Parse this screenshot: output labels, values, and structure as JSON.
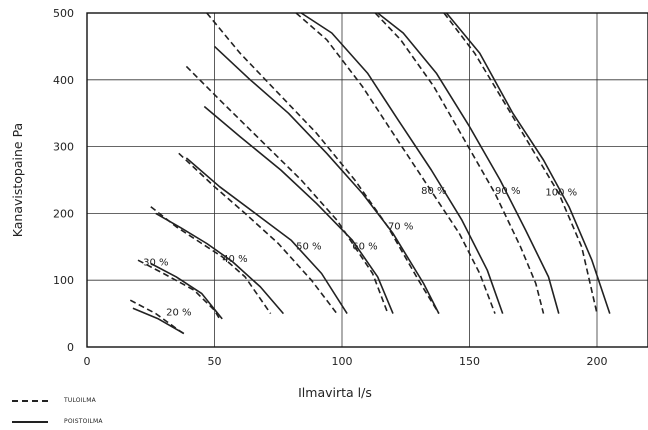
{
  "chart_data": {
    "type": "line",
    "xlabel": "Ilmavirta l/s",
    "ylabel": "Kanavistopaine Pa",
    "xlim": [
      0,
      220
    ],
    "ylim": [
      0,
      500
    ],
    "xticks": [
      0,
      50,
      100,
      150,
      200
    ],
    "yticks": [
      0,
      100,
      200,
      300,
      400,
      500
    ],
    "grid": true,
    "legend": [
      {
        "label": "TULOILMA",
        "style": "dashed"
      },
      {
        "label": "POISTOILMA",
        "style": "solid"
      }
    ],
    "series": [
      {
        "curve": "20 %",
        "style": "dashed",
        "points": [
          [
            17,
            70
          ],
          [
            27,
            50
          ],
          [
            36,
            25
          ],
          [
            38,
            20
          ]
        ]
      },
      {
        "curve": "20 %",
        "style": "solid",
        "points": [
          [
            18,
            58
          ],
          [
            28,
            42
          ],
          [
            38,
            20
          ]
        ]
      },
      {
        "curve": "30 %",
        "style": "dashed",
        "points": [
          [
            20,
            130
          ],
          [
            30,
            110
          ],
          [
            42,
            85
          ],
          [
            50,
            55
          ],
          [
            52,
            42
          ]
        ]
      },
      {
        "curve": "30 %",
        "style": "solid",
        "points": [
          [
            25,
            125
          ],
          [
            35,
            105
          ],
          [
            45,
            80
          ],
          [
            53,
            42
          ]
        ]
      },
      {
        "curve": "40 %",
        "style": "dashed",
        "points": [
          [
            25,
            210
          ],
          [
            35,
            180
          ],
          [
            45,
            155
          ],
          [
            53,
            135
          ],
          [
            62,
            105
          ],
          [
            72,
            50
          ]
        ]
      },
      {
        "curve": "40 %",
        "style": "solid",
        "points": [
          [
            27,
            200
          ],
          [
            37,
            178
          ],
          [
            47,
            155
          ],
          [
            57,
            128
          ],
          [
            68,
            90
          ],
          [
            77,
            50
          ]
        ]
      },
      {
        "curve": "50 %",
        "style": "dashed",
        "points": [
          [
            36,
            290
          ],
          [
            50,
            240
          ],
          [
            62,
            200
          ],
          [
            75,
            155
          ],
          [
            88,
            100
          ],
          [
            98,
            50
          ]
        ]
      },
      {
        "curve": "50 %",
        "style": "solid",
        "points": [
          [
            39,
            283
          ],
          [
            52,
            240
          ],
          [
            66,
            200
          ],
          [
            80,
            160
          ],
          [
            92,
            110
          ],
          [
            102,
            50
          ]
        ]
      },
      {
        "curve": "60 %",
        "style": "dashed",
        "points": [
          [
            39,
            420
          ],
          [
            52,
            370
          ],
          [
            68,
            310
          ],
          [
            84,
            250
          ],
          [
            98,
            190
          ],
          [
            112,
            110
          ],
          [
            118,
            50
          ]
        ]
      },
      {
        "curve": "60 %",
        "style": "solid",
        "points": [
          [
            46,
            360
          ],
          [
            60,
            315
          ],
          [
            76,
            265
          ],
          [
            90,
            215
          ],
          [
            104,
            160
          ],
          [
            114,
            105
          ],
          [
            120,
            50
          ]
        ]
      },
      {
        "curve": "70 %",
        "style": "dashed",
        "points": [
          [
            47,
            500
          ],
          [
            60,
            440
          ],
          [
            75,
            380
          ],
          [
            90,
            320
          ],
          [
            105,
            250
          ],
          [
            118,
            180
          ],
          [
            130,
            100
          ],
          [
            138,
            50
          ]
        ]
      },
      {
        "curve": "70 %",
        "style": "solid",
        "points": [
          [
            50,
            450
          ],
          [
            64,
            400
          ],
          [
            79,
            350
          ],
          [
            94,
            290
          ],
          [
            108,
            230
          ],
          [
            120,
            170
          ],
          [
            132,
            95
          ],
          [
            138,
            50
          ]
        ]
      },
      {
        "curve": "80 %",
        "style": "dashed",
        "points": [
          [
            82,
            500
          ],
          [
            94,
            460
          ],
          [
            108,
            390
          ],
          [
            120,
            320
          ],
          [
            133,
            245
          ],
          [
            146,
            170
          ],
          [
            154,
            110
          ],
          [
            160,
            50
          ]
        ]
      },
      {
        "curve": "80 %",
        "style": "solid",
        "points": [
          [
            84,
            500
          ],
          [
            96,
            470
          ],
          [
            110,
            410
          ],
          [
            122,
            340
          ],
          [
            135,
            265
          ],
          [
            147,
            190
          ],
          [
            157,
            115
          ],
          [
            163,
            50
          ]
        ]
      },
      {
        "curve": "90 %",
        "style": "dashed",
        "points": [
          [
            113,
            500
          ],
          [
            123,
            460
          ],
          [
            136,
            390
          ],
          [
            148,
            310
          ],
          [
            160,
            230
          ],
          [
            170,
            150
          ],
          [
            176,
            95
          ],
          [
            179,
            50
          ]
        ]
      },
      {
        "curve": "90 %",
        "style": "solid",
        "points": [
          [
            114,
            500
          ],
          [
            124,
            470
          ],
          [
            137,
            410
          ],
          [
            150,
            330
          ],
          [
            162,
            250
          ],
          [
            172,
            175
          ],
          [
            181,
            105
          ],
          [
            185,
            50
          ]
        ]
      },
      {
        "curve": "100 %",
        "style": "dashed",
        "points": [
          [
            140,
            500
          ],
          [
            152,
            440
          ],
          [
            163,
            370
          ],
          [
            174,
            300
          ],
          [
            185,
            230
          ],
          [
            194,
            150
          ],
          [
            200,
            50
          ]
        ]
      },
      {
        "curve": "100 %",
        "style": "solid",
        "points": [
          [
            141,
            500
          ],
          [
            154,
            440
          ],
          [
            167,
            350
          ],
          [
            179,
            280
          ],
          [
            189,
            210
          ],
          [
            198,
            130
          ],
          [
            205,
            50
          ]
        ]
      }
    ],
    "curve_labels": [
      {
        "text": "20 %",
        "x": 36,
        "y": 53
      },
      {
        "text": "30 %",
        "x": 27,
        "y": 128
      },
      {
        "text": "40 %",
        "x": 58,
        "y": 133
      },
      {
        "text": "50 %",
        "x": 87,
        "y": 152
      },
      {
        "text": "60 %",
        "x": 109,
        "y": 152
      },
      {
        "text": "70 %",
        "x": 123,
        "y": 182
      },
      {
        "text": "80 %",
        "x": 136,
        "y": 235
      },
      {
        "text": "90 %",
        "x": 165,
        "y": 235
      },
      {
        "text": "100 %",
        "x": 186,
        "y": 233
      }
    ]
  }
}
